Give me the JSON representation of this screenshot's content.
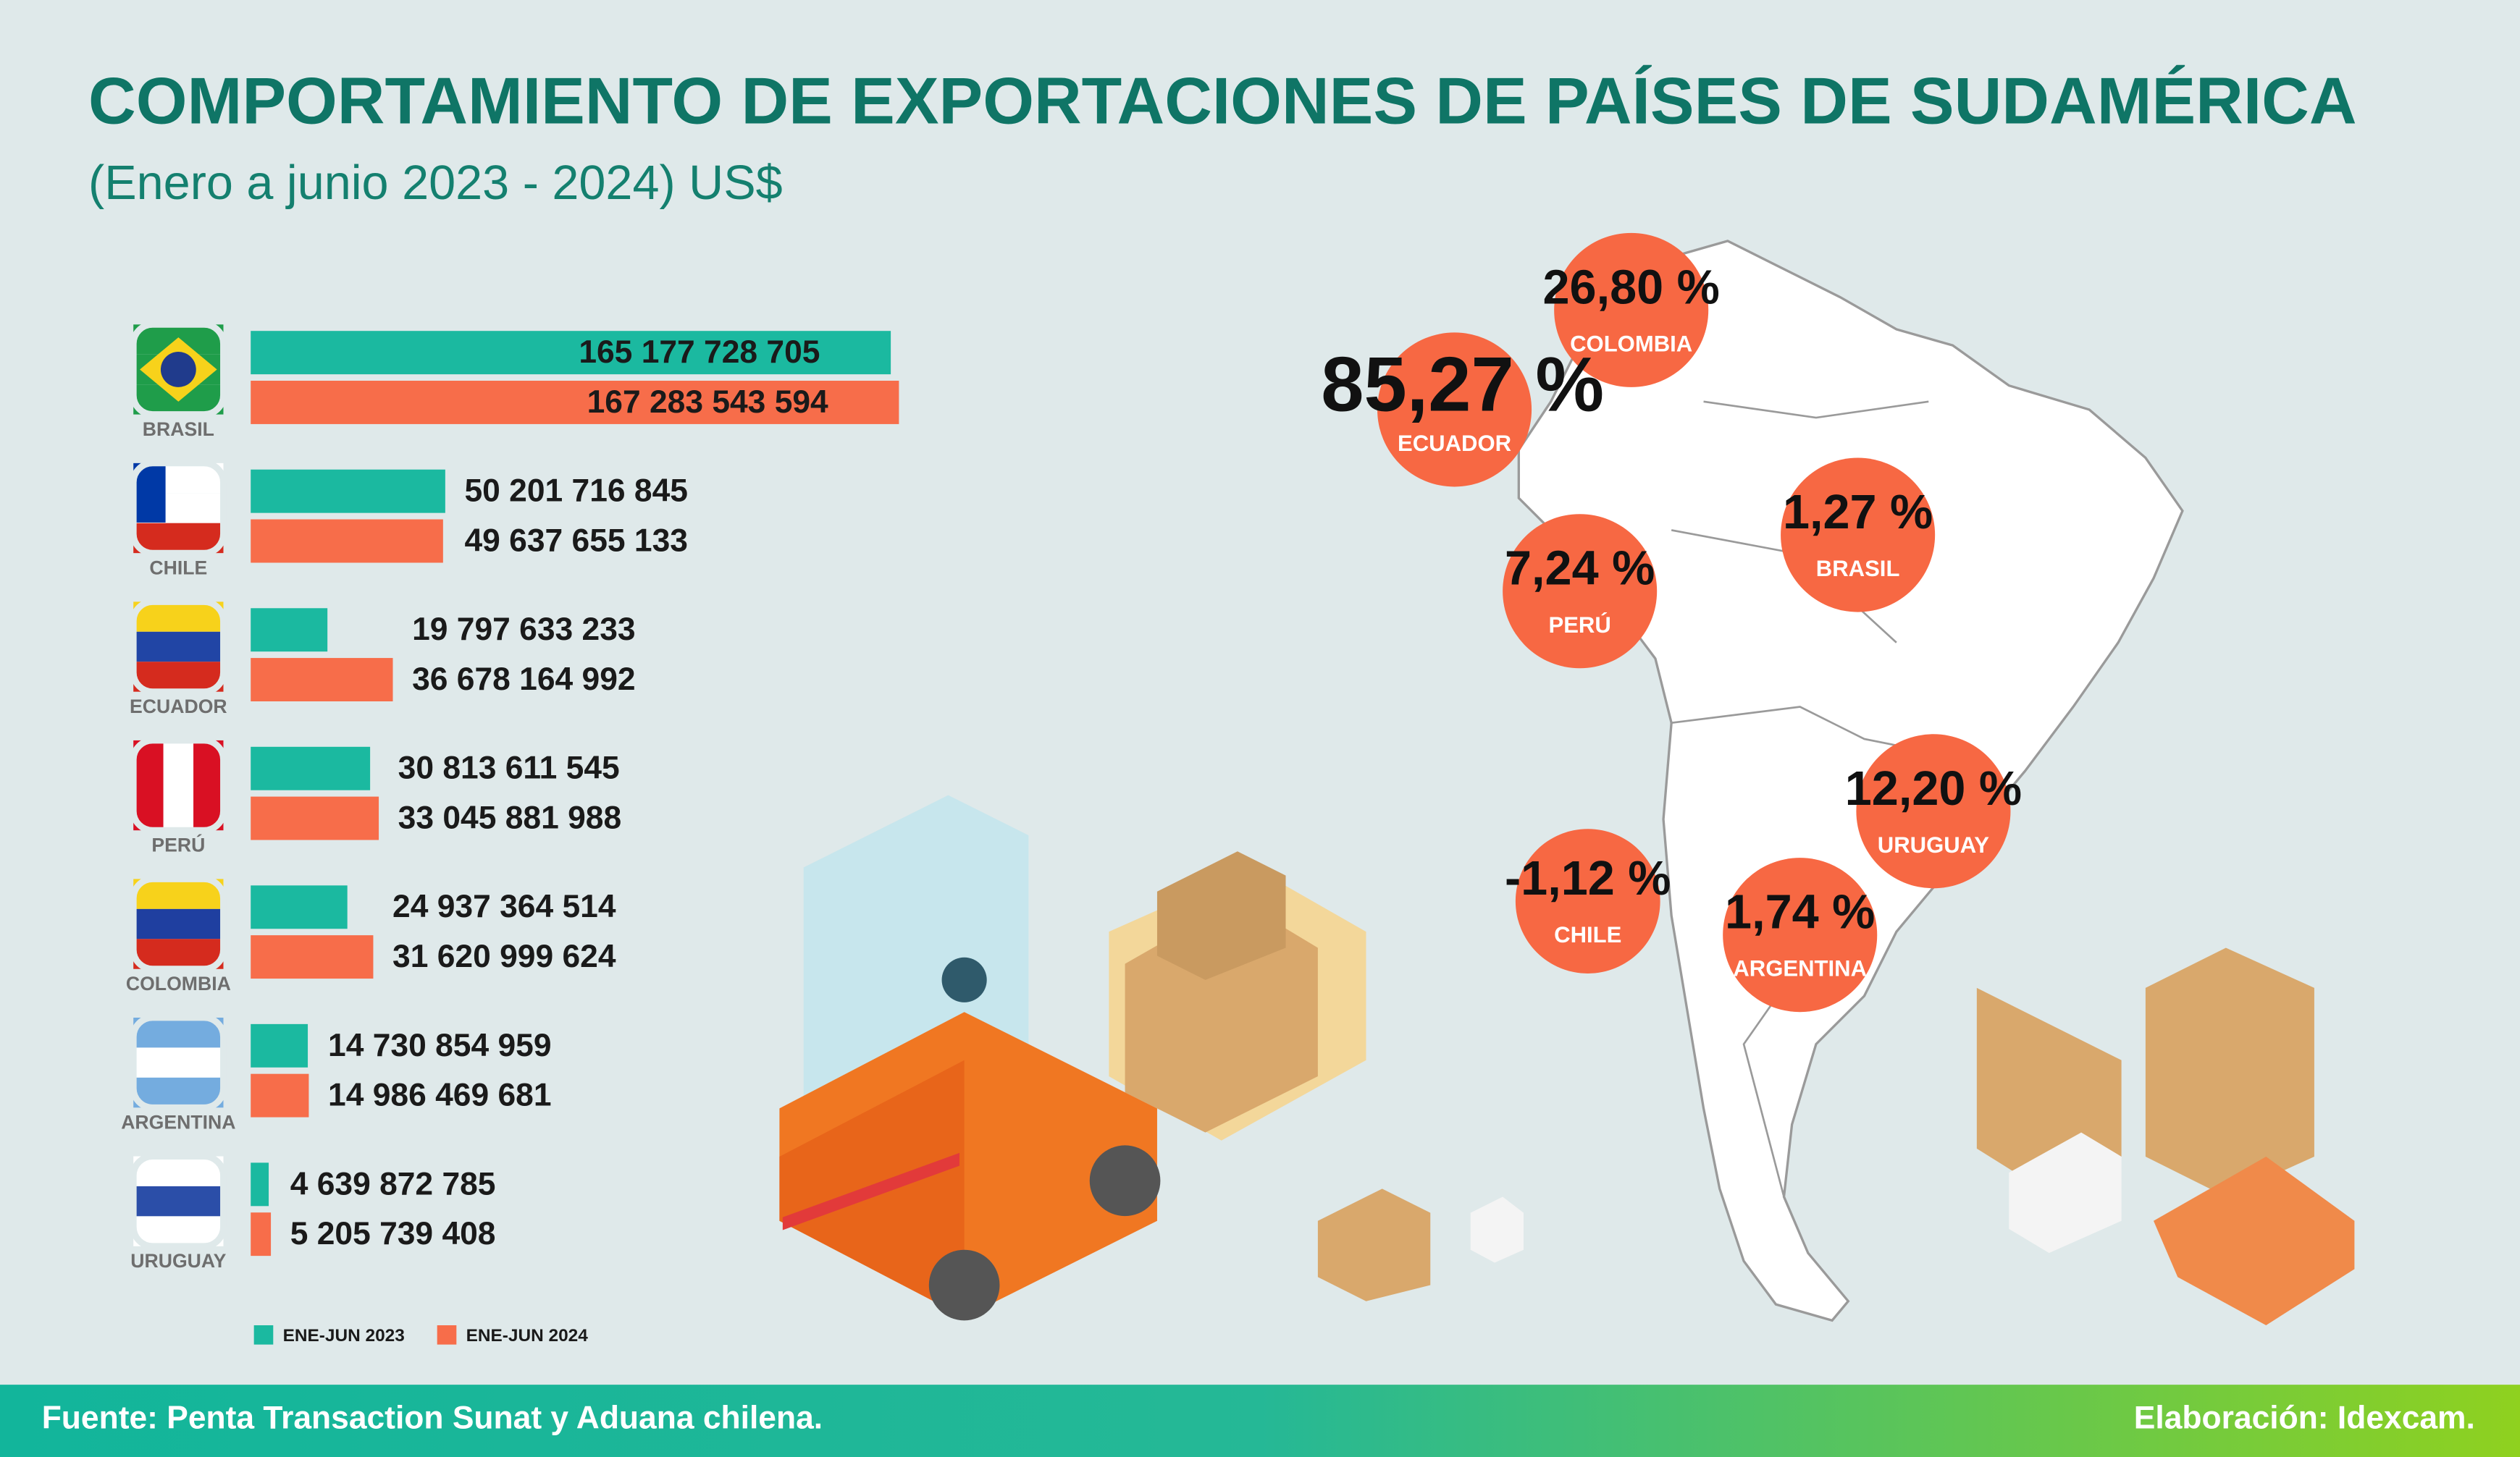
{
  "chart_data": {
    "type": "bar",
    "orientation": "horizontal",
    "title": "COMPORTAMIENTO DE EXPORTACIONES DE PAÍSES DE SUDAMÉRICA",
    "subtitle": "(Enero a junio 2023 - 2024) US$",
    "categories": [
      "BRASIL",
      "CHILE",
      "ECUADOR",
      "PERÚ",
      "COLOMBIA",
      "ARGENTINA",
      "URUGUAY"
    ],
    "series": [
      {
        "name": "ENE-JUN 2023",
        "color": "#1bb9a0",
        "values": [
          165177728705,
          50201716845,
          19797633233,
          30813611545,
          24937364514,
          14730854959,
          4639872785
        ],
        "value_labels": [
          "165 177 728 705",
          "50 201 716 845",
          "19 797 633 233",
          "30 813 611 545",
          "24 937 364 514",
          "14 730 854 959",
          "4 639 872 785"
        ]
      },
      {
        "name": "ENE-JUN 2024",
        "color": "#f76d4a",
        "values": [
          167283543594,
          49637655133,
          36678164992,
          33045881988,
          31620999624,
          14986469681,
          5205739408
        ],
        "value_labels": [
          "167 283 543 594",
          "49 637 655 133",
          "36 678 164 992",
          "33 045 881 988",
          "31 620 999 624",
          "14 986 469 681",
          "5 205 739 408"
        ]
      }
    ],
    "xlim": [
      0,
      180000000000
    ],
    "legend": "bottom-left",
    "growth_labels": [
      {
        "country": "COLOMBIA",
        "label": "26,80 %"
      },
      {
        "country": "ECUADOR",
        "label": "85,27 %"
      },
      {
        "country": "PERÚ",
        "label": "7,24 %"
      },
      {
        "country": "BRASIL",
        "label": "1,27 %"
      },
      {
        "country": "URUGUAY",
        "label": "12,20 %"
      },
      {
        "country": "CHILE",
        "label": "-1,12 %"
      },
      {
        "country": "ARGENTINA",
        "label": "1,74 %"
      }
    ],
    "source": "Fuente:  Penta Transaction  Sunat y Aduana chilena.",
    "credit": "Elaboración: Idexcam."
  }
}
